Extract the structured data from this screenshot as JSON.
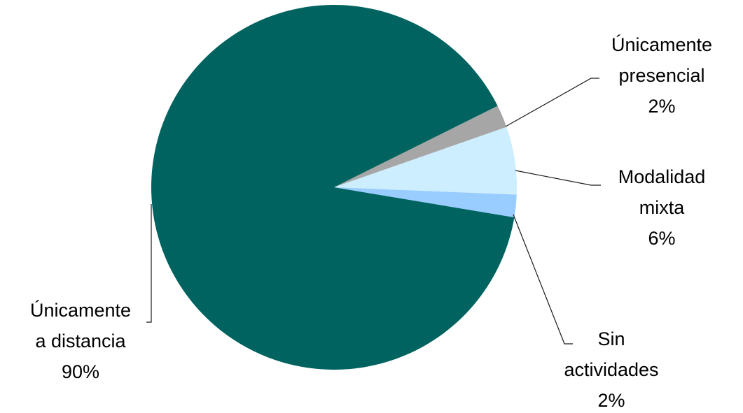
{
  "chart_data": {
    "type": "pie",
    "title": "",
    "slices": [
      {
        "label_lines": [
          "Únicamente",
          "a distancia"
        ],
        "value": 90,
        "value_label": "90%",
        "color": "#00635f"
      },
      {
        "label_lines": [
          "Únicamente",
          "presencial"
        ],
        "value": 2,
        "value_label": "2%",
        "color": "#a6a6a6"
      },
      {
        "label_lines": [
          "Modalidad",
          "mixta"
        ],
        "value": 6,
        "value_label": "6%",
        "color": "#cceeff"
      },
      {
        "label_lines": [
          "Sin",
          "actividades"
        ],
        "value": 2,
        "value_label": "2%",
        "color": "#99ccff"
      }
    ]
  }
}
